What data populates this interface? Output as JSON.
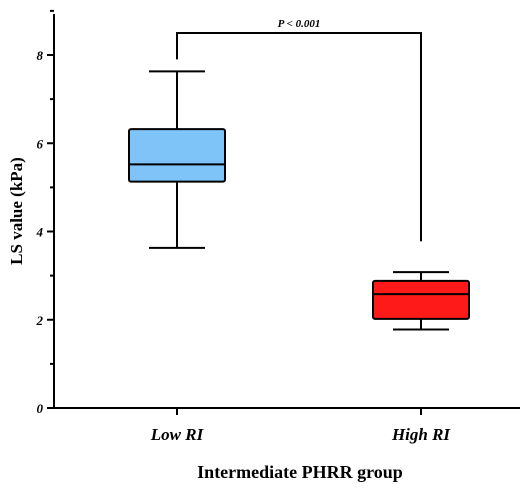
{
  "chart_data": {
    "type": "box",
    "title": "",
    "xlabel": "Intermediate PHRR group",
    "ylabel": "LS value (kPa)",
    "ylim": [
      0,
      9
    ],
    "yticks": [
      0,
      2,
      4,
      6,
      8
    ],
    "grid": false,
    "categories": [
      "Low RI",
      "High RI"
    ],
    "boxes": [
      {
        "category": "Low RI",
        "min": 3.63,
        "q1": 5.13,
        "median": 5.52,
        "q3": 6.32,
        "max": 7.63,
        "color": "#7fc4f8"
      },
      {
        "category": "High RI",
        "min": 1.78,
        "q1": 2.02,
        "median": 2.58,
        "q3": 2.88,
        "max": 3.08,
        "color": "#ff1a1a"
      }
    ],
    "annotation": {
      "text": "P < 0.001",
      "y": 8.5,
      "left_end": 7.9,
      "right_end": 3.78
    }
  }
}
